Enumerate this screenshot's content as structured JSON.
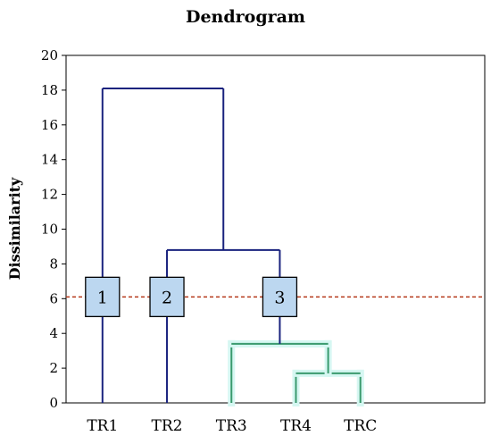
{
  "chart_data": {
    "type": "dendrogram",
    "title": "Dendrogram",
    "ylabel": "Dissimilarity",
    "xlabel": "",
    "ylim": [
      0,
      20
    ],
    "yticks": [
      0,
      2,
      4,
      6,
      8,
      10,
      12,
      14,
      16,
      18,
      20
    ],
    "leaves": [
      "TR1",
      "TR2",
      "TR3",
      "TR4",
      "TRC"
    ],
    "merges": [
      {
        "left": "TR4",
        "right": "TRC",
        "height": 1.7,
        "cluster": 3
      },
      {
        "left": "TR3",
        "right": "TR4+TRC",
        "height": 3.4,
        "cluster": 3
      },
      {
        "left": "TR2",
        "right": "TR3+TR4+TRC",
        "height": 8.8
      },
      {
        "left": "TR1",
        "right": "TR2+TR3+TR4+TRC",
        "height": 18.1
      }
    ],
    "truncation_line": 6.1,
    "clusters": [
      {
        "label": "1",
        "members": [
          "TR1"
        ]
      },
      {
        "label": "2",
        "members": [
          "TR2"
        ]
      },
      {
        "label": "3",
        "members": [
          "TR3",
          "TR4",
          "TRC"
        ]
      }
    ],
    "colors": {
      "above_cut": "#1a237e",
      "below_cut": "#3a9a6e",
      "cut_line": "#b5391a",
      "box_fill": "#bcd7f0",
      "box_stroke": "#000000"
    }
  }
}
